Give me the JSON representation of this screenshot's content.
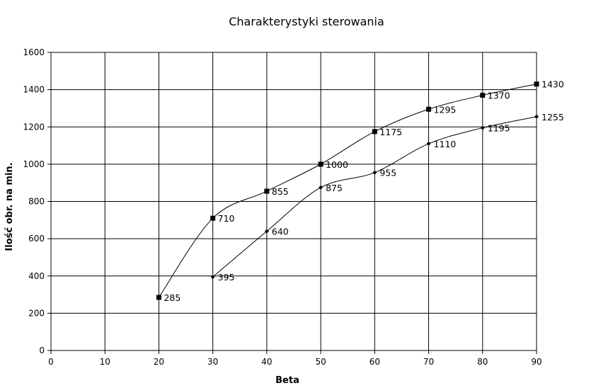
{
  "chart_data": {
    "type": "line",
    "title": "Charakterystyki sterowania",
    "xlabel": "Beta",
    "ylabel": "Ilość obr. na min.",
    "xlim": [
      0,
      90
    ],
    "ylim": [
      0,
      1600
    ],
    "xticks": [
      0,
      10,
      20,
      30,
      40,
      50,
      60,
      70,
      80,
      90
    ],
    "yticks": [
      0,
      200,
      400,
      600,
      800,
      1000,
      1200,
      1400,
      1600
    ],
    "grid": true,
    "legend": "none",
    "series": [
      {
        "marker": "square",
        "x": [
          20,
          30,
          40,
          50,
          60,
          70,
          80,
          90
        ],
        "y": [
          285,
          710,
          855,
          1000,
          1175,
          1295,
          1370,
          1430
        ],
        "labels": [
          "285",
          "710",
          "855",
          "1000",
          "1175",
          "1295",
          "1370",
          "1430"
        ]
      },
      {
        "marker": "diamond",
        "x": [
          30,
          40,
          50,
          60,
          70,
          80,
          90
        ],
        "y": [
          395,
          640,
          875,
          955,
          1110,
          1195,
          1255
        ],
        "labels": [
          "395",
          "640",
          "875",
          "955",
          "1110",
          "1195",
          "1255"
        ]
      }
    ]
  }
}
